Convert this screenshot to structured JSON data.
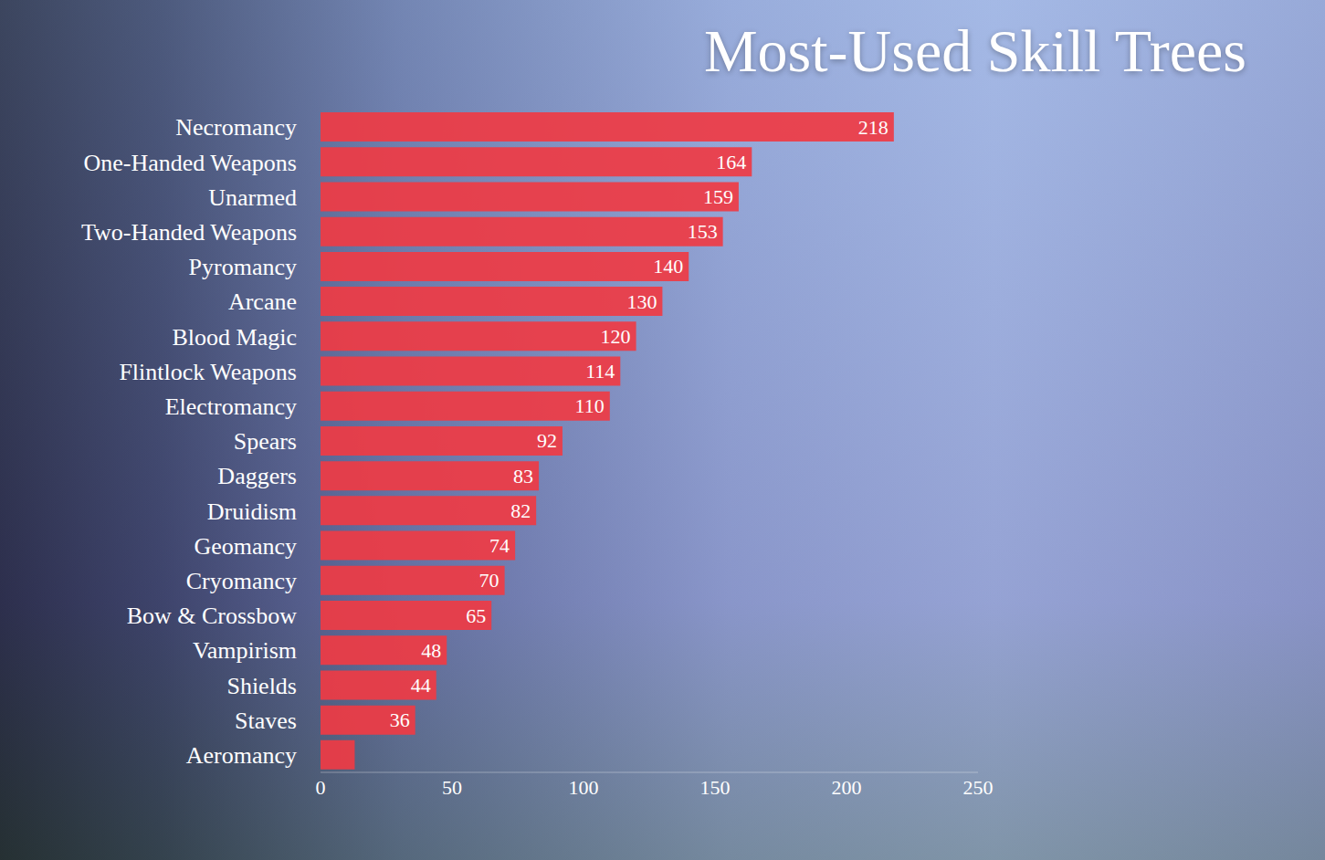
{
  "chart_data": {
    "type": "bar",
    "title": "Most-Used Skill Trees",
    "orientation": "horizontal",
    "categories": [
      "Necromancy",
      "One-Handed Weapons",
      "Unarmed",
      "Two-Handed Weapons",
      "Pyromancy",
      "Arcane",
      "Blood Magic",
      "Flintlock Weapons",
      "Electromancy",
      "Spears",
      "Daggers",
      "Druidism",
      "Geomancy",
      "Cryomancy",
      "Bow & Crossbow",
      "Vampirism",
      "Shields",
      "Staves",
      "Aeromancy"
    ],
    "values": [
      218,
      164,
      159,
      153,
      140,
      130,
      120,
      114,
      110,
      92,
      83,
      82,
      74,
      70,
      65,
      48,
      44,
      36,
      13
    ],
    "value_labels": [
      "218",
      "164",
      "159",
      "153",
      "140",
      "130",
      "120",
      "114",
      "110",
      "92",
      "83",
      "82",
      "74",
      "70",
      "65",
      "48",
      "44",
      "36",
      null
    ],
    "data_labels": true,
    "color": "#ef3b44",
    "xlim": [
      0,
      250
    ],
    "xticks": [
      0,
      50,
      100,
      150,
      200,
      250
    ],
    "grid": false
  }
}
